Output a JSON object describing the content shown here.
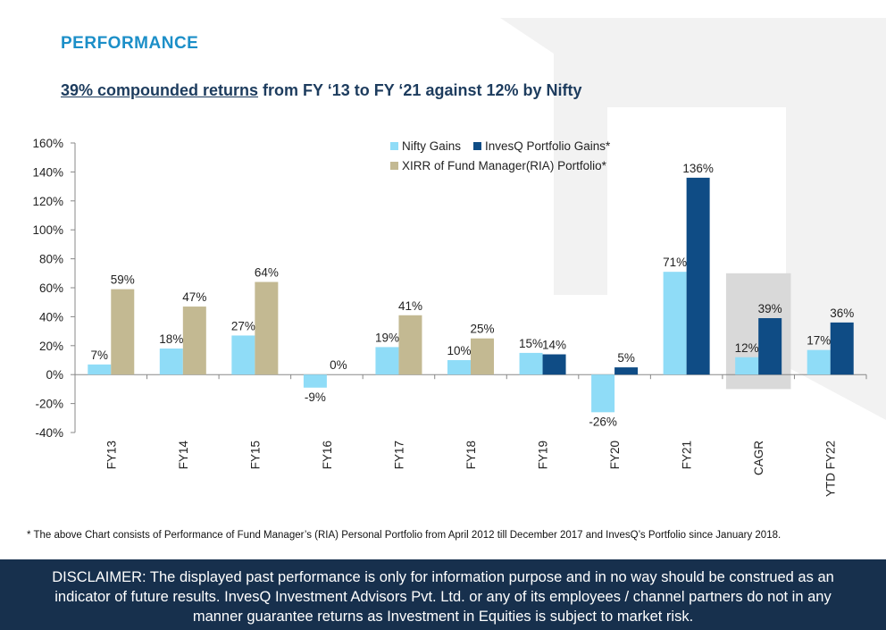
{
  "header": {
    "section_title": "PERFORMANCE",
    "subtitle_underlined": "39% compounded returns",
    "subtitle_rest": " from FY ‘13 to FY ‘21 against 12% by Nifty"
  },
  "chart_data": {
    "type": "bar",
    "categories": [
      "FY13",
      "FY14",
      "FY15",
      "FY16",
      "FY17",
      "FY18",
      "FY19",
      "FY20",
      "FY21",
      "CAGR",
      "YTD FY22"
    ],
    "series": [
      {
        "name": "Nifty Gains",
        "color": "#8fdcf7",
        "values": [
          7,
          18,
          27,
          -9,
          19,
          10,
          15,
          -26,
          71,
          12,
          17
        ]
      },
      {
        "name": "XIRR of Fund Manager(RIA) Portfolio*",
        "color": "#c3b992",
        "values": [
          59,
          47,
          64,
          0,
          41,
          25,
          null,
          null,
          null,
          null,
          null
        ]
      },
      {
        "name": "InvesQ Portfolio Gains*",
        "color": "#0f4c85",
        "values": [
          null,
          null,
          null,
          null,
          null,
          null,
          14,
          5,
          136,
          39,
          36
        ]
      }
    ],
    "data_labels": [
      [
        "7%",
        "18%",
        "27%",
        "-9%",
        "19%",
        "10%",
        "15%",
        "-26%",
        "71%",
        "12%",
        "17%"
      ],
      [
        "59%",
        "47%",
        "64%",
        "0%",
        "41%",
        "25%",
        null,
        null,
        null,
        null,
        null
      ],
      [
        null,
        null,
        null,
        null,
        null,
        null,
        "14%",
        "5%",
        "136%",
        "39%",
        "36%"
      ]
    ],
    "yticks": [
      160,
      140,
      120,
      100,
      80,
      60,
      40,
      20,
      0,
      -20,
      -40
    ],
    "ytick_labels": [
      "160%",
      "140%",
      "120%",
      "100%",
      "80%",
      "60%",
      "40%",
      "20%",
      "0%",
      "-20%",
      "-40%"
    ],
    "ylim": [
      -40,
      160
    ],
    "highlight_category": "CAGR",
    "highlight_color": "#d9d9d9",
    "legend": {
      "placement": "top-center",
      "row1": [
        "Nifty Gains",
        "InvesQ Portfolio Gains*"
      ],
      "row2": [
        "XIRR of Fund Manager(RIA) Portfolio*"
      ]
    },
    "title": "",
    "xlabel": "",
    "ylabel": ""
  },
  "footnote": "* The above Chart consists of Performance of Fund Manager’s (RIA) Personal Portfolio from April 2012 till December 2017 and InvesQ’s Portfolio since January 2018.",
  "disclaimer": {
    "line1": "DISCLAIMER: The displayed past performance is only for information purpose and in no way should be construed as an",
    "line2": "indicator of future results. InvesQ Investment Advisors Pvt. Ltd. or any of its employees / channel partners do not in any",
    "line3": "manner guarantee returns as Investment in Equities is subject to market risk."
  }
}
